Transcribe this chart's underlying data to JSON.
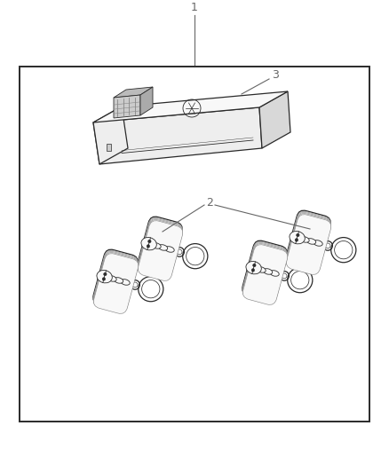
{
  "bg_color": "#ffffff",
  "border_color": "#2a2a2a",
  "line_color": "#2a2a2a",
  "label_color": "#666666",
  "fill_light": "#f8f8f8",
  "fill_mid": "#eeeeee",
  "fill_dark": "#d8d8d8",
  "fill_connector": "#cccccc",
  "label_1": "1",
  "label_2": "2",
  "label_3": "3",
  "fig_width": 4.38,
  "fig_height": 5.33,
  "dpi": 100
}
